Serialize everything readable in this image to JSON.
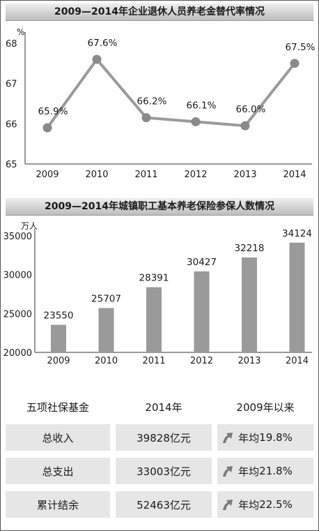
{
  "chart1": {
    "title": "2009—2014年企业退休人员养老金替代率情况",
    "unit": "%",
    "type": "line",
    "x": [
      "2009",
      "2010",
      "2011",
      "2012",
      "2013",
      "2014"
    ],
    "values": [
      65.9,
      67.6,
      66.15,
      66.05,
      65.95,
      67.5
    ],
    "labels": [
      "65.9%",
      "67.6%",
      "66.2%",
      "66.1%",
      "66.0%",
      "67.5%"
    ],
    "yticks": [
      "65",
      "66",
      "67",
      "68"
    ],
    "ylim": [
      65,
      68
    ]
  },
  "chart2": {
    "title": "2009—2014年城镇职工基本养老保险参保人数情况",
    "unit": "万人",
    "type": "bar",
    "x": [
      "2009",
      "2010",
      "2011",
      "2012",
      "2013",
      "2014"
    ],
    "values": [
      23550,
      25707,
      28391,
      30427,
      32218,
      34124
    ],
    "yticks": [
      "20000",
      "25000",
      "30000",
      "35000"
    ],
    "ylim": [
      20000,
      35000
    ]
  },
  "chart_data": [
    {
      "type": "line",
      "title": "2009—2014年企业退休人员养老金替代率情况",
      "ylabel": "%",
      "x": [
        "2009",
        "2010",
        "2011",
        "2012",
        "2013",
        "2014"
      ],
      "values": [
        65.9,
        67.6,
        66.2,
        66.1,
        66.0,
        67.5
      ],
      "ylim": [
        65,
        68
      ]
    },
    {
      "type": "bar",
      "title": "2009—2014年城镇职工基本养老保险参保人数情况",
      "ylabel": "万人",
      "categories": [
        "2009",
        "2010",
        "2011",
        "2012",
        "2013",
        "2014"
      ],
      "values": [
        23550,
        25707,
        28391,
        30427,
        32218,
        34124
      ],
      "ylim": [
        20000,
        35000
      ]
    }
  ],
  "table": {
    "headers": [
      "五项社保基金",
      "2014年",
      "2009年以来"
    ],
    "prefix": "年均",
    "rows": [
      {
        "name": "总收入",
        "amount": "39828亿元",
        "growth": "19.8%"
      },
      {
        "name": "总支出",
        "amount": "33003亿元",
        "growth": "21.8%"
      },
      {
        "name": "累计结余",
        "amount": "52463亿元",
        "growth": "22.5%"
      }
    ]
  },
  "colors": {
    "bar": "#9a9a9a",
    "line": "#9a9a9a",
    "row": "#e6e6e6"
  }
}
